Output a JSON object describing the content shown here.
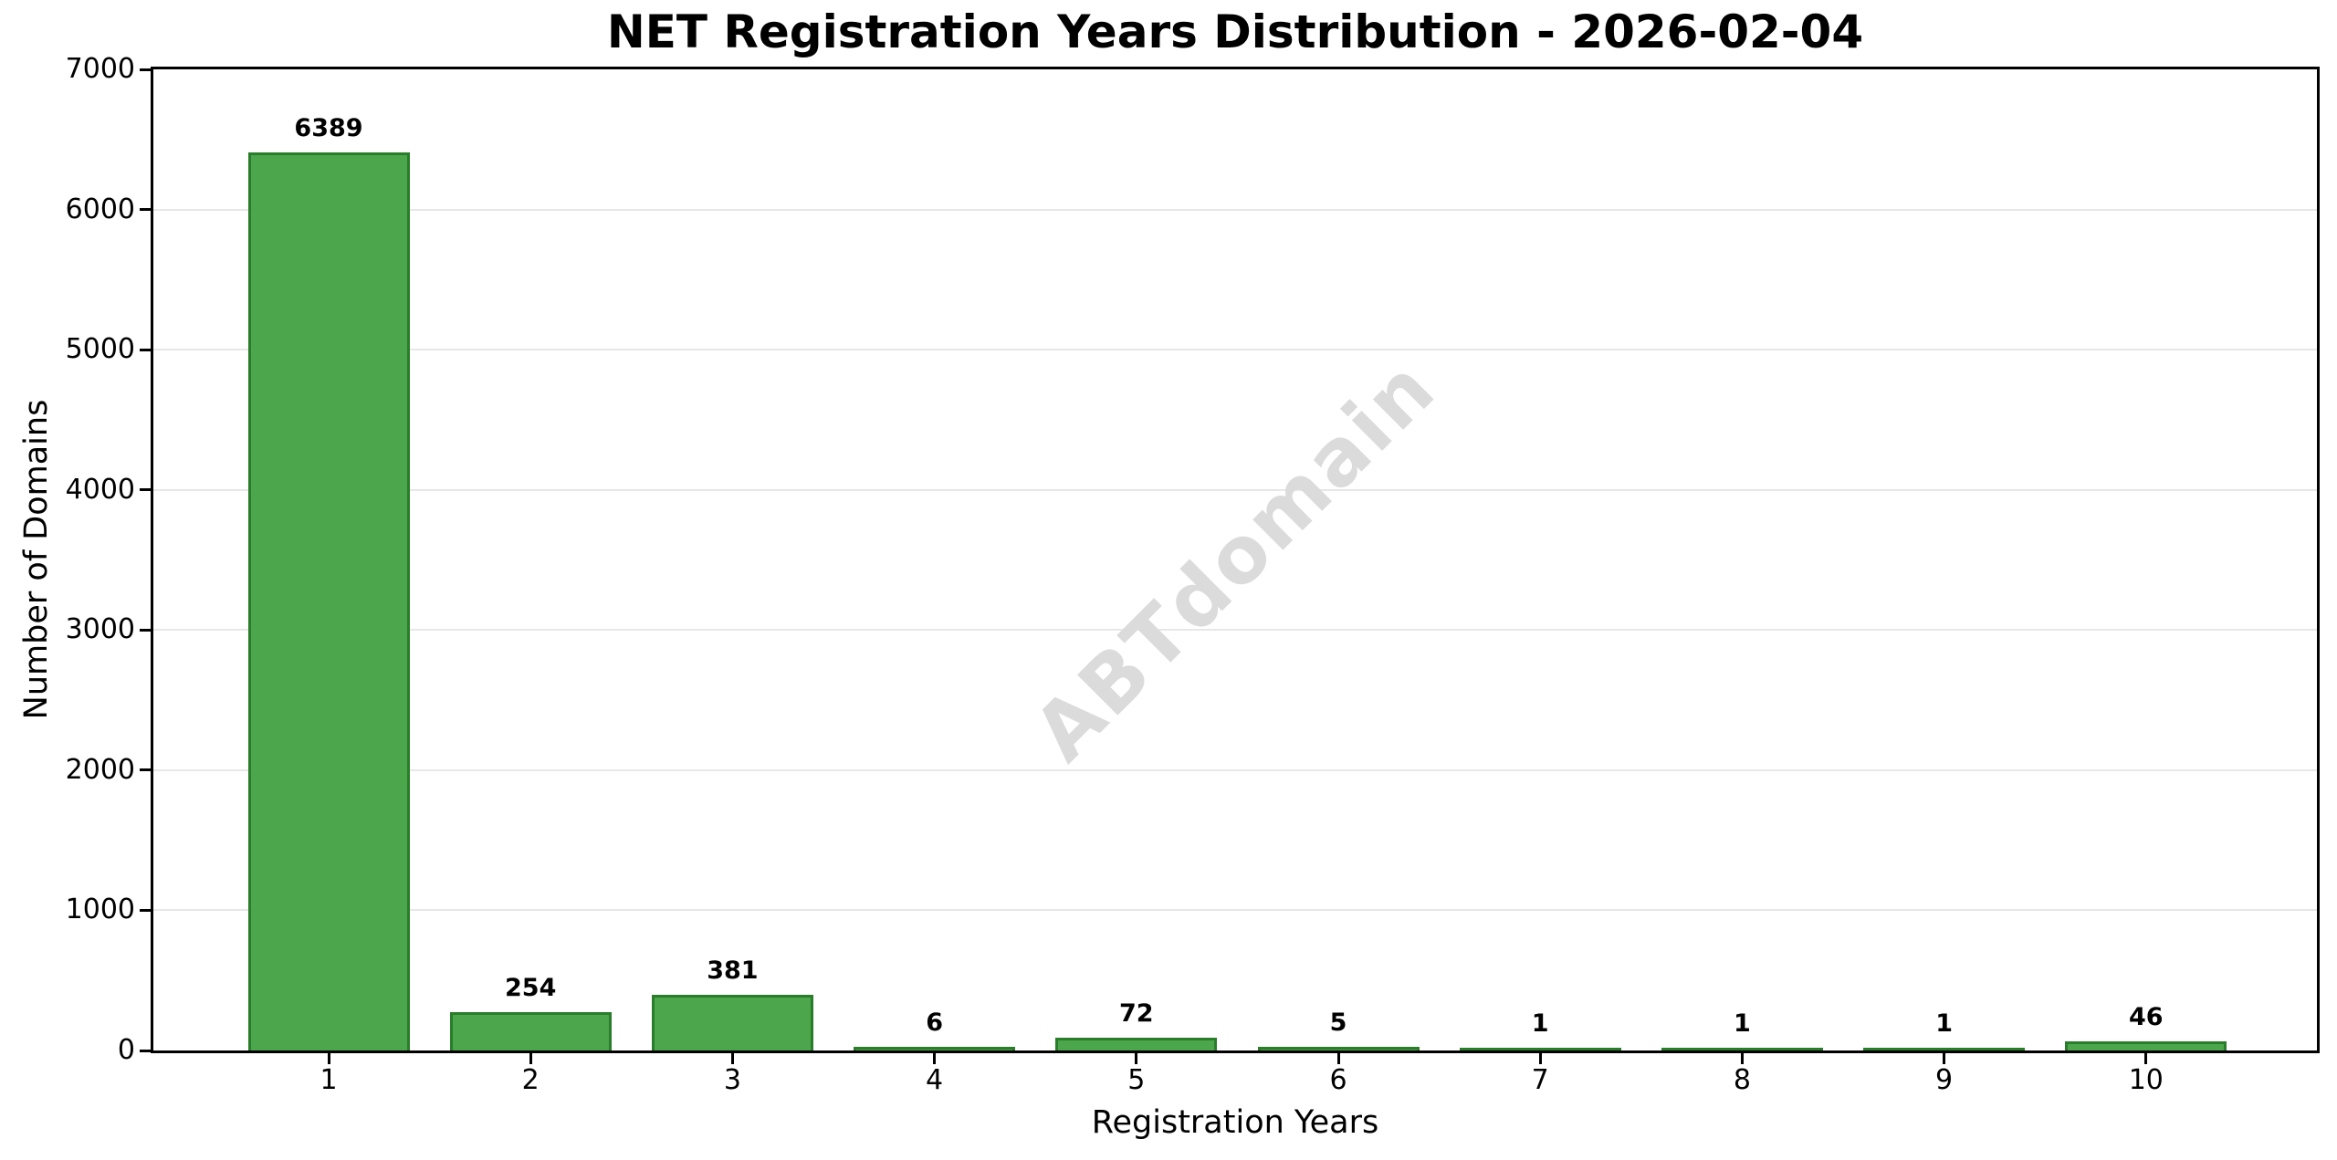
{
  "title": "NET Registration Years Distribution - 2026-02-04",
  "watermark": "ABTdomain",
  "colors": {
    "bar_fill": "#4ca64c",
    "bar_edge": "#2a7d2a",
    "grid": "#e7e7e7",
    "axis": "#000000",
    "watermark": "#dbdbdb",
    "background": "#ffffff"
  },
  "chart_data": {
    "type": "bar",
    "title": "NET Registration Years Distribution - 2026-02-04",
    "xlabel": "Registration Years",
    "ylabel": "Number of Domains",
    "categories": [
      "1",
      "2",
      "3",
      "4",
      "5",
      "6",
      "7",
      "8",
      "9",
      "10"
    ],
    "values": [
      6389,
      254,
      381,
      6,
      72,
      5,
      1,
      1,
      1,
      46
    ],
    "bar_labels": [
      "6389",
      "254",
      "381",
      "6",
      "72",
      "5",
      "1",
      "1",
      "1",
      "46"
    ],
    "ylim": [
      0,
      7000
    ],
    "yticks": [
      0,
      1000,
      2000,
      3000,
      4000,
      5000,
      6000,
      7000
    ],
    "ytick_labels": [
      "0",
      "1000",
      "2000",
      "3000",
      "4000",
      "5000",
      "6000",
      "7000"
    ],
    "grid": "horizontal",
    "legend": "none",
    "watermark": "ABTdomain",
    "bar_color_name": "green",
    "bar_width_fraction": 0.8
  }
}
